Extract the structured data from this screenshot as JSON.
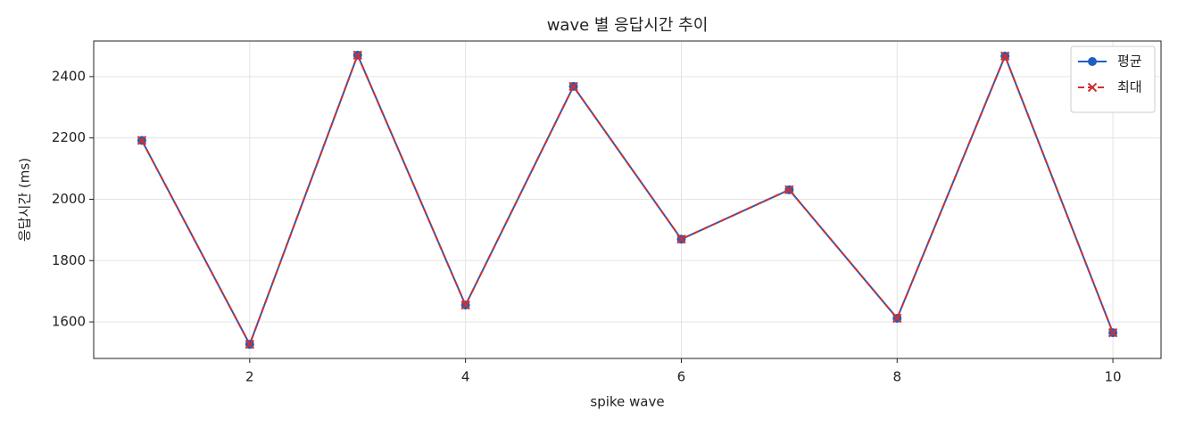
{
  "chart_data": {
    "type": "line",
    "title": "wave 별 응답시간 추이",
    "xlabel": "spike wave",
    "ylabel": "응답시간 (ms)",
    "x": [
      1,
      2,
      3,
      4,
      5,
      6,
      7,
      8,
      9,
      10
    ],
    "series": [
      {
        "name": "평균",
        "color": "#1f5fbf",
        "marker": "o",
        "linestyle": "solid",
        "values": [
          2192,
          1527,
          2470,
          1655,
          2368,
          1870,
          2031,
          1612,
          2467,
          1565
        ]
      },
      {
        "name": "최대",
        "color": "#d03030",
        "marker": "x",
        "linestyle": "dashed",
        "values": [
          2192,
          1527,
          2470,
          1655,
          2368,
          1870,
          2031,
          1612,
          2467,
          1565
        ]
      }
    ],
    "xlim": [
      0.554,
      10.446
    ],
    "xticks": [
      2,
      4,
      6,
      8,
      10
    ],
    "ylim": [
      1481,
      2516
    ],
    "yticks": [
      1600,
      1800,
      2000,
      2200,
      2400
    ],
    "grid": true,
    "legend": "upper right"
  }
}
